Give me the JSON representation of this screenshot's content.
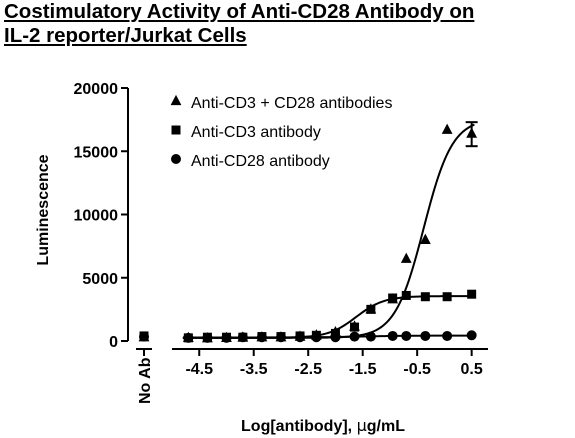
{
  "chart_data": {
    "type": "scatter",
    "title_lines": [
      "Costimulatory Activity of Anti-CD28 Antibody on",
      "IL-2 reporter/Jurkat Cells"
    ],
    "xlabel_pre": "Log[antibody], ",
    "xlabel_mu": "µ",
    "xlabel_post": "g/mL",
    "ylabel": "Luminescence",
    "ylim": [
      0,
      20000
    ],
    "yticks": [
      0,
      5000,
      10000,
      15000,
      20000
    ],
    "ytick_labels": [
      "0",
      "5000",
      "10000",
      "15000",
      "20000"
    ],
    "xlim": [
      -5,
      0.8
    ],
    "xticks": [
      -4.5,
      -3.5,
      -2.5,
      -1.5,
      -0.5,
      0.5
    ],
    "xtick_labels": [
      "-4.5",
      "-3.5",
      "-2.5",
      "-1.5",
      "-0.5",
      "0.5"
    ],
    "no_ab_label": "No Ab",
    "legend_position": "top-left",
    "series": [
      {
        "name": "Anti-CD3 + CD28 antibodies",
        "marker": "triangle",
        "no_ab_value": 300,
        "points": [
          {
            "x": -4.7,
            "y": 250
          },
          {
            "x": -4.35,
            "y": 220
          },
          {
            "x": -4.0,
            "y": 250
          },
          {
            "x": -3.7,
            "y": 280
          },
          {
            "x": -3.35,
            "y": 300
          },
          {
            "x": -3.0,
            "y": 300
          },
          {
            "x": -2.65,
            "y": 350
          },
          {
            "x": -2.35,
            "y": 450
          },
          {
            "x": -2.0,
            "y": 700
          },
          {
            "x": -1.65,
            "y": 1150
          },
          {
            "x": -1.35,
            "y": 2500
          },
          {
            "x": -0.95,
            "y": 3300
          },
          {
            "x": -0.7,
            "y": 6500
          },
          {
            "x": -0.35,
            "y": 8000
          },
          {
            "x": 0.05,
            "y": 16700
          },
          {
            "x": 0.5,
            "y": 16400
          }
        ],
        "fit": {
          "bottom": 250,
          "top": 17600,
          "logec50": -0.38,
          "hill": 1.65
        },
        "error_bar": {
          "x": 0.5,
          "low": 15400,
          "high": 17300
        }
      },
      {
        "name": "Anti-CD3 antibody",
        "marker": "square",
        "no_ab_value": 400,
        "points": [
          {
            "x": -4.7,
            "y": 250
          },
          {
            "x": -4.35,
            "y": 300
          },
          {
            "x": -4.0,
            "y": 300
          },
          {
            "x": -3.7,
            "y": 300
          },
          {
            "x": -3.35,
            "y": 350
          },
          {
            "x": -3.0,
            "y": 350
          },
          {
            "x": -2.65,
            "y": 400
          },
          {
            "x": -2.35,
            "y": 450
          },
          {
            "x": -2.0,
            "y": 600
          },
          {
            "x": -1.65,
            "y": 1100
          },
          {
            "x": -1.35,
            "y": 2500
          },
          {
            "x": -0.95,
            "y": 3400
          },
          {
            "x": -0.7,
            "y": 3600
          },
          {
            "x": -0.35,
            "y": 3500
          },
          {
            "x": 0.05,
            "y": 3500
          },
          {
            "x": 0.5,
            "y": 3700
          }
        ],
        "fit": {
          "bottom": 250,
          "top": 3550,
          "logec50": -1.62,
          "hill": 1.7
        }
      },
      {
        "name": "Anti-CD28 antibody",
        "marker": "circle",
        "no_ab_value": 350,
        "points": [
          {
            "x": -4.7,
            "y": 250
          },
          {
            "x": -4.35,
            "y": 250
          },
          {
            "x": -4.0,
            "y": 250
          },
          {
            "x": -3.7,
            "y": 300
          },
          {
            "x": -3.35,
            "y": 300
          },
          {
            "x": -3.0,
            "y": 300
          },
          {
            "x": -2.65,
            "y": 300
          },
          {
            "x": -2.35,
            "y": 300
          },
          {
            "x": -2.0,
            "y": 300
          },
          {
            "x": -1.65,
            "y": 350
          },
          {
            "x": -1.35,
            "y": 350
          },
          {
            "x": -0.95,
            "y": 400
          },
          {
            "x": -0.7,
            "y": 400
          },
          {
            "x": -0.35,
            "y": 400
          },
          {
            "x": 0.05,
            "y": 400
          },
          {
            "x": 0.5,
            "y": 450
          }
        ],
        "fit": {
          "bottom": 280,
          "top": 430,
          "logec50": -1.5,
          "hill": 1.0
        }
      }
    ]
  }
}
